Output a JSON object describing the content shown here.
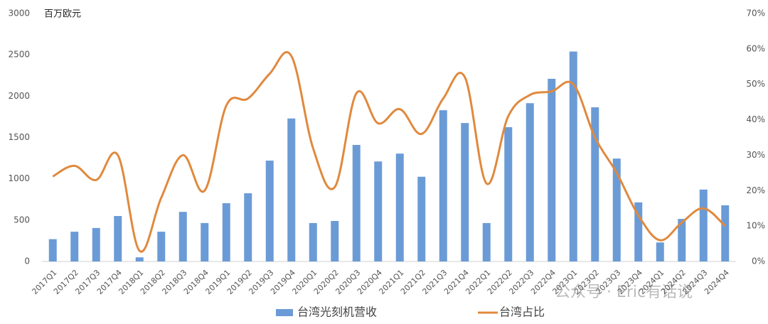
{
  "chart_data": {
    "type": "bar-line",
    "unit_label": "百万欧元",
    "watermark": "公众号 · Eric有话说",
    "categories": [
      "2017Q1",
      "2017Q2",
      "2017Q3",
      "2017Q4",
      "2018Q1",
      "2018Q2",
      "2018Q3",
      "2018Q4",
      "2019Q1",
      "2019Q2",
      "2019Q3",
      "2019Q4",
      "2020Q1",
      "2020Q2",
      "2020Q3",
      "2020Q4",
      "2021Q1",
      "2021Q2",
      "2021Q3",
      "2021Q4",
      "2022Q1",
      "2022Q2",
      "2022Q3",
      "2022Q4",
      "2023Q1",
      "2023Q2",
      "2023Q3",
      "2023Q4",
      "2024Q1",
      "2024Q2",
      "2024Q3",
      "2024Q4"
    ],
    "series": [
      {
        "name": "台湾光刻机营收",
        "type": "bar",
        "color": "#6b9bd6",
        "values": [
          270,
          360,
          405,
          550,
          50,
          360,
          600,
          465,
          705,
          825,
          1220,
          1730,
          465,
          490,
          1410,
          1210,
          1305,
          1025,
          1830,
          1675,
          465,
          1625,
          1915,
          2210,
          2540,
          1865,
          1245,
          715,
          230,
          515,
          870,
          680
        ]
      },
      {
        "name": "台湾占比",
        "type": "line",
        "axis": "y2",
        "color": "#e0893e",
        "values": [
          24,
          27,
          23,
          30,
          3,
          18,
          30,
          20,
          44,
          46,
          53,
          58,
          32,
          21,
          47.5,
          39,
          43,
          36,
          46,
          52,
          22,
          41,
          47,
          48,
          50,
          35,
          25,
          13,
          6,
          11,
          15,
          10
        ]
      }
    ],
    "ylim": [
      0,
      3000
    ],
    "yticks": [
      0,
      500,
      1000,
      1500,
      2000,
      2500,
      3000
    ],
    "y2lim": [
      0,
      70
    ],
    "y2ticks": [
      {
        "value": 0,
        "label": "0%"
      },
      {
        "value": 10,
        "label": "10%"
      },
      {
        "value": 20,
        "label": "20%"
      },
      {
        "value": 30,
        "label": "30%"
      },
      {
        "value": 40,
        "label": "40%"
      },
      {
        "value": 50,
        "label": "50%"
      },
      {
        "value": 60,
        "label": "60%"
      },
      {
        "value": 70,
        "label": "70%"
      }
    ],
    "grid": false
  }
}
